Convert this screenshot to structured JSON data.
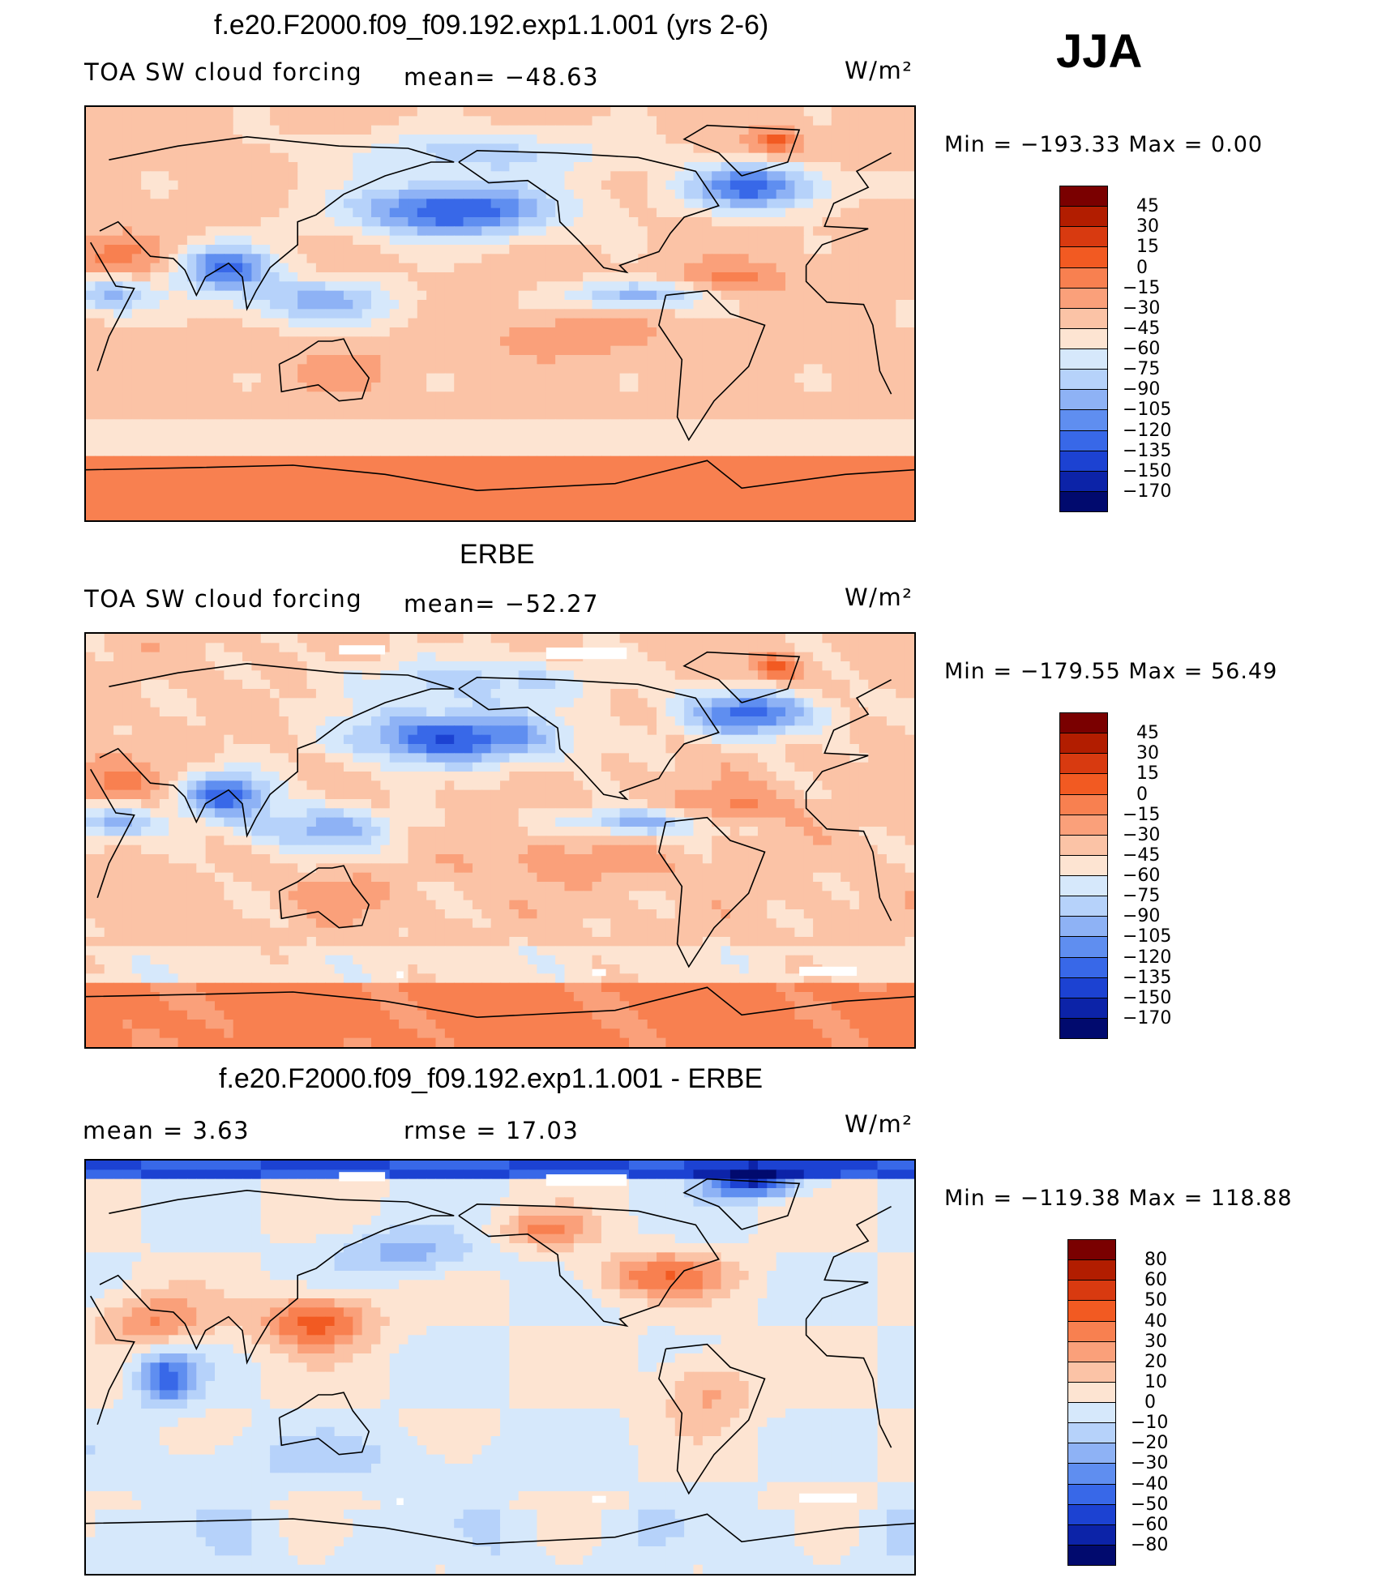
{
  "season": "JJA",
  "panels": [
    {
      "title": "f.e20.F2000.f09_f09.192.exp1.1.001 (yrs 2-6)",
      "left_label": "TOA SW cloud forcing",
      "center_label": "mean= −48.63",
      "units": "W/m²",
      "minmax": "Min  =  −193.33  Max  =     0.00",
      "field": "model"
    },
    {
      "title": "ERBE",
      "left_label": "TOA SW cloud forcing",
      "center_label": "mean= −52.27",
      "units": "W/m²",
      "minmax": "Min  =  −179.55  Max  =    56.49",
      "field": "obs"
    },
    {
      "title": "f.e20.F2000.f09_f09.192.exp1.1.001 - ERBE",
      "left_label": "mean  =     3.63",
      "center_label": "rmse  =    17.03",
      "units": "W/m²",
      "minmax": "Min  =  −119.38  Max  =  118.88",
      "field": "diff"
    }
  ],
  "chart_data": [
    {
      "type": "heatmap",
      "title": "f.e20.F2000.f09_f09.192.exp1.1.001 (yrs 2-6)",
      "variable": "TOA SW cloud forcing",
      "units": "W/m2",
      "mean": -48.63,
      "min": -193.33,
      "max": 0.0,
      "colorbar_levels": [
        "45",
        "30",
        "15",
        "0",
        "−15",
        "−30",
        "−45",
        "−60",
        "−75",
        "−90",
        "−105",
        "−120",
        "−135",
        "−150",
        "−170"
      ],
      "colors": [
        "#7a0000",
        "#b21d00",
        "#d83a10",
        "#f25a22",
        "#f88050",
        "#faa07a",
        "#fbc3a6",
        "#fde4d2",
        "#d6e8fb",
        "#b6d2fa",
        "#8eb2f5",
        "#5f8ef0",
        "#3868e8",
        "#1c42d2",
        "#0c23a8",
        "#010a6e"
      ]
    },
    {
      "type": "heatmap",
      "title": "ERBE",
      "variable": "TOA SW cloud forcing",
      "units": "W/m2",
      "mean": -52.27,
      "min": -179.55,
      "max": 56.49,
      "colorbar_levels": [
        "45",
        "30",
        "15",
        "0",
        "−15",
        "−30",
        "−45",
        "−60",
        "−75",
        "−90",
        "−105",
        "−120",
        "−135",
        "−150",
        "−170"
      ],
      "colors": [
        "#7a0000",
        "#b21d00",
        "#d83a10",
        "#f25a22",
        "#f88050",
        "#faa07a",
        "#fbc3a6",
        "#fde4d2",
        "#d6e8fb",
        "#b6d2fa",
        "#8eb2f5",
        "#5f8ef0",
        "#3868e8",
        "#1c42d2",
        "#0c23a8",
        "#010a6e"
      ]
    },
    {
      "type": "heatmap",
      "title": "f.e20.F2000.f09_f09.192.exp1.1.001 - ERBE",
      "units": "W/m2",
      "mean": 3.63,
      "rmse": 17.03,
      "min": -119.38,
      "max": 118.88,
      "colorbar_levels": [
        "80",
        "60",
        "50",
        "40",
        "30",
        "20",
        "10",
        "0",
        "−10",
        "−20",
        "−30",
        "−40",
        "−50",
        "−60",
        "−80"
      ],
      "colors": [
        "#7a0000",
        "#b21d00",
        "#d83a10",
        "#f25a22",
        "#f88050",
        "#faa07a",
        "#fbc3a6",
        "#fde4d2",
        "#d6e8fb",
        "#b6d2fa",
        "#8eb2f5",
        "#5f8ef0",
        "#3868e8",
        "#1c42d2",
        "#0c23a8",
        "#010a6e"
      ]
    }
  ]
}
